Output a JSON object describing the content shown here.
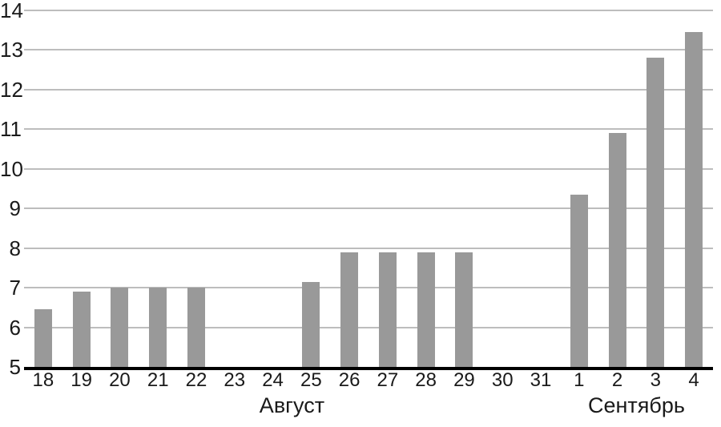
{
  "chart_data": {
    "type": "bar",
    "categories": [
      "18",
      "19",
      "20",
      "21",
      "22",
      "23",
      "24",
      "25",
      "26",
      "27",
      "28",
      "29",
      "30",
      "31",
      "1",
      "2",
      "3",
      "4"
    ],
    "values": [
      6.45,
      6.9,
      7,
      7,
      7,
      null,
      null,
      7.15,
      7.9,
      7.9,
      7.9,
      7.9,
      null,
      null,
      9.35,
      10.9,
      12.8,
      13.45
    ],
    "month_groups": [
      {
        "label": "Август",
        "start_index": 0,
        "end_index": 13
      },
      {
        "label": "Сентябрь",
        "start_index": 14,
        "end_index": 17
      }
    ],
    "ylim": [
      5,
      14
    ],
    "yticks": [
      5,
      6,
      7,
      8,
      9,
      10,
      11,
      12,
      13,
      14
    ],
    "grid": true,
    "legend": false,
    "bar_color": "#999999",
    "gridline_color": "#bdbdbd",
    "axis_color": "#000000",
    "text_color": "#1a1a1a"
  }
}
